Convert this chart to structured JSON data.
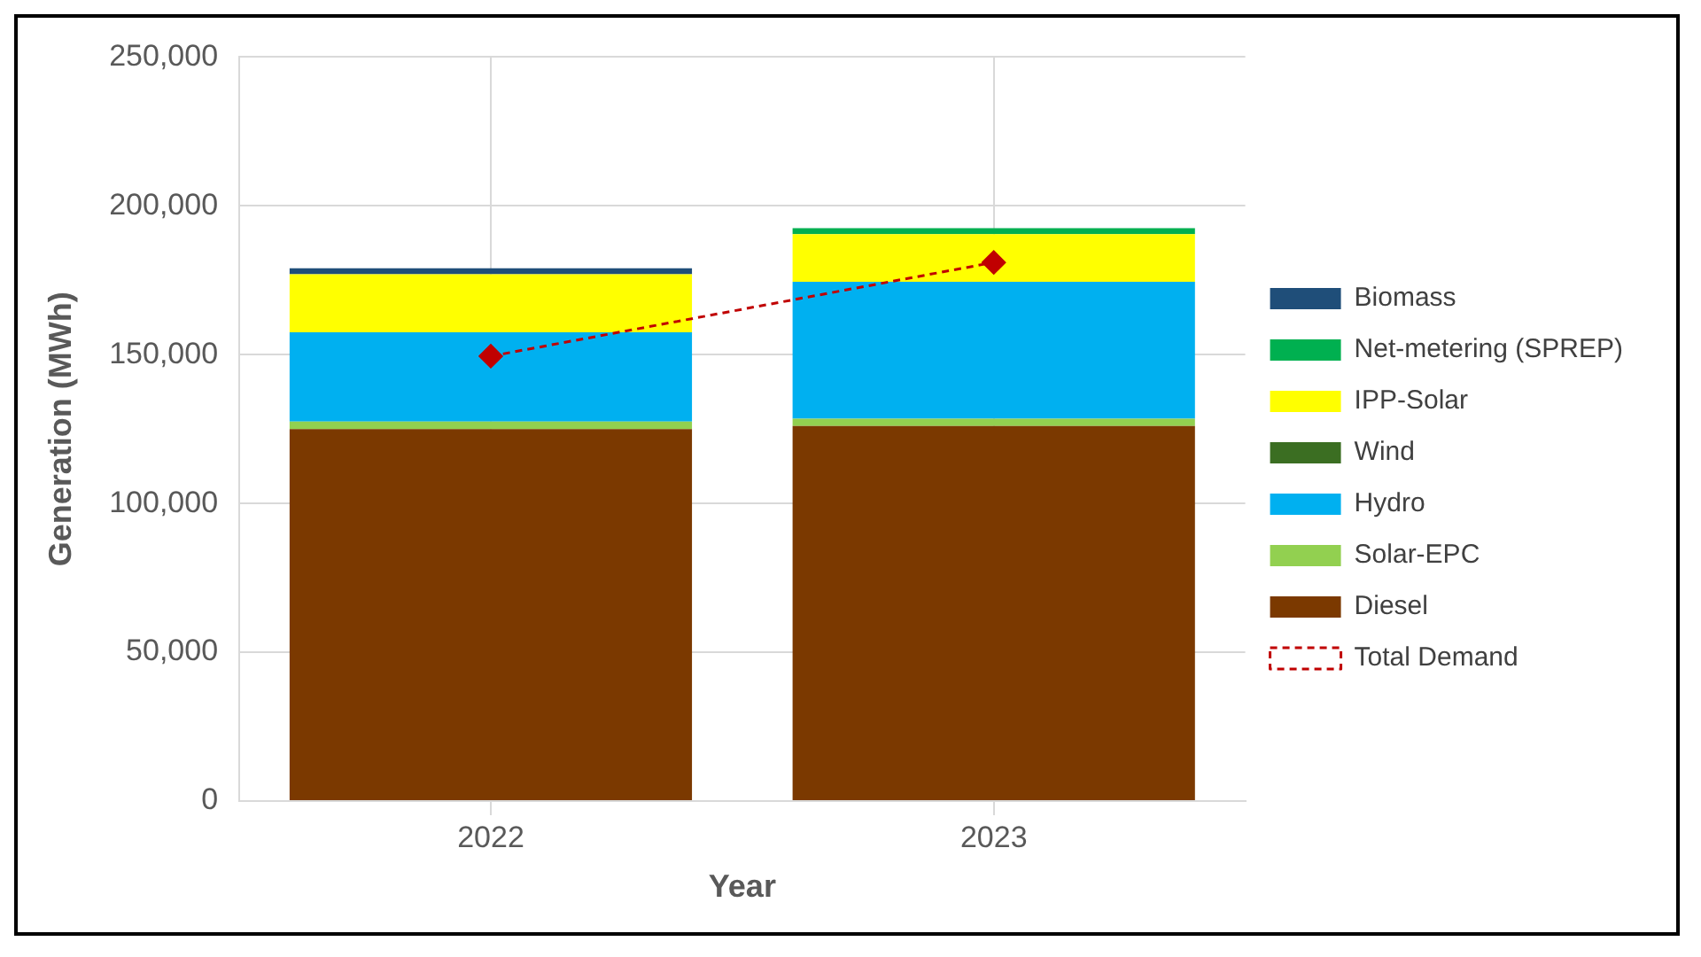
{
  "chart_data": {
    "type": "bar",
    "stacked": true,
    "xlabel": "Year",
    "ylabel": "Generation (MWh)",
    "categories": [
      "2022",
      "2023"
    ],
    "series": [
      {
        "name": "Diesel",
        "color": "#7b3900",
        "values": [
          125000,
          126000
        ]
      },
      {
        "name": "Solar-EPC",
        "color": "#92d050",
        "values": [
          2500,
          2500
        ]
      },
      {
        "name": "Hydro",
        "color": "#00b0f0",
        "values": [
          30000,
          46000
        ]
      },
      {
        "name": "Wind",
        "color": "#3b6e22",
        "values": [
          0,
          0
        ]
      },
      {
        "name": "IPP-Solar",
        "color": "#ffff00",
        "values": [
          19500,
          16000
        ]
      },
      {
        "name": "Net-metering (SPREP)",
        "color": "#00b050",
        "values": [
          0,
          2000
        ]
      },
      {
        "name": "Biomass",
        "color": "#1f4e79",
        "values": [
          2000,
          0
        ]
      },
      {
        "name": "Total Demand",
        "type": "line",
        "color": "#c00000",
        "marker": "diamond",
        "line_style": "dashed",
        "values": [
          149500,
          181000
        ]
      }
    ],
    "ylim": [
      0,
      250000
    ],
    "yticks": [
      0,
      {
        "value": 50000,
        "label": "50,000"
      },
      {
        "value": 100000,
        "label": "100,000"
      },
      {
        "value": 150000,
        "label": "150,000"
      },
      {
        "value": 200000,
        "label": "200,000"
      },
      {
        "value": 250000,
        "label": "250,000"
      }
    ],
    "grid": true,
    "legend": "right"
  }
}
